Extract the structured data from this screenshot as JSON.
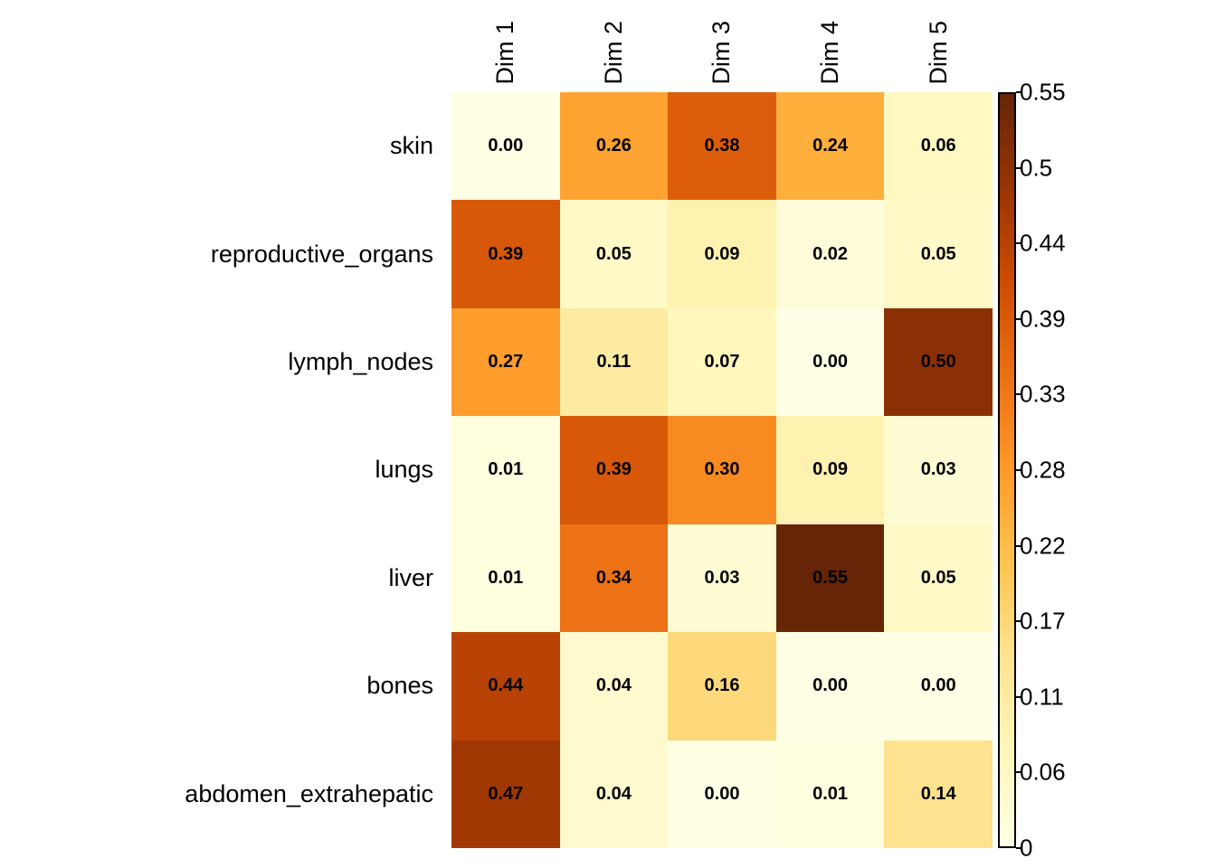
{
  "chart_data": {
    "type": "heatmap",
    "title": "",
    "xlabel": "",
    "ylabel": "",
    "columns": [
      "Dim 1",
      "Dim 2",
      "Dim 3",
      "Dim 4",
      "Dim 5"
    ],
    "rows": [
      "skin",
      "reproductive_organs",
      "lymph_nodes",
      "lungs",
      "liver",
      "bones",
      "abdomen_extrahepatic"
    ],
    "values": [
      [
        0.0,
        0.26,
        0.38,
        0.24,
        0.06
      ],
      [
        0.39,
        0.05,
        0.09,
        0.02,
        0.05
      ],
      [
        0.27,
        0.11,
        0.07,
        0.0,
        0.5
      ],
      [
        0.01,
        0.39,
        0.3,
        0.09,
        0.03
      ],
      [
        0.01,
        0.34,
        0.03,
        0.55,
        0.05
      ],
      [
        0.44,
        0.04,
        0.16,
        0.0,
        0.0
      ],
      [
        0.47,
        0.04,
        0.0,
        0.01,
        0.14
      ]
    ],
    "value_format_decimals": 2,
    "domain": [
      0,
      0.55
    ],
    "colormap_name": "YlOrBr",
    "colormap": [
      "#FFFFE5",
      "#FFF7BC",
      "#FEE391",
      "#FEC44F",
      "#FE9929",
      "#EC7014",
      "#CC4C02",
      "#993404",
      "#662506"
    ],
    "cell_text_color": "#000000",
    "background_color": "#FFFFFF",
    "grid": false,
    "legend_position": "right",
    "colorbar": {
      "tick_values": [
        0,
        0.055,
        0.11,
        0.165,
        0.22,
        0.275,
        0.33,
        0.385,
        0.44,
        0.495,
        0.55
      ],
      "tick_labels": [
        "0",
        "0.06",
        "0.11",
        "0.17",
        "0.22",
        "0.28",
        "0.33",
        "0.39",
        "0.44",
        "0.5",
        "0.55"
      ]
    }
  }
}
